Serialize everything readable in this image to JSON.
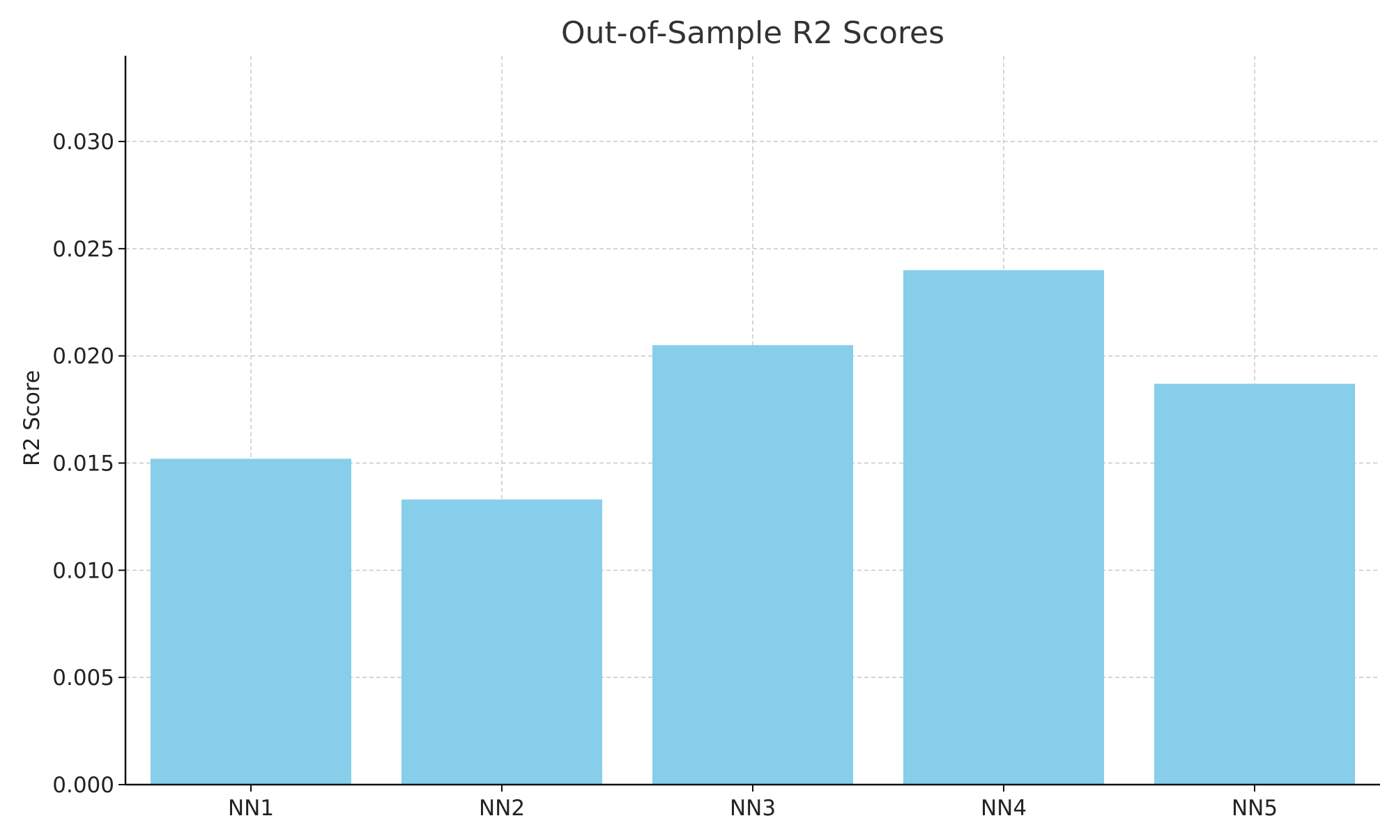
{
  "chart_data": {
    "type": "bar",
    "title": "Out-of-Sample R2 Scores",
    "xlabel": "",
    "ylabel": "R2 Score",
    "categories": [
      "NN1",
      "NN2",
      "NN3",
      "NN4",
      "NN5"
    ],
    "values": [
      0.0152,
      0.0133,
      0.0205,
      0.024,
      0.0187
    ],
    "ylim": [
      0,
      0.034
    ],
    "yticks": [
      0.0,
      0.005,
      0.01,
      0.015,
      0.02,
      0.025,
      0.03
    ],
    "ytick_labels": [
      "0.000",
      "0.005",
      "0.010",
      "0.015",
      "0.020",
      "0.025",
      "0.030"
    ],
    "grid": true,
    "bar_color": "#87CEEB"
  }
}
